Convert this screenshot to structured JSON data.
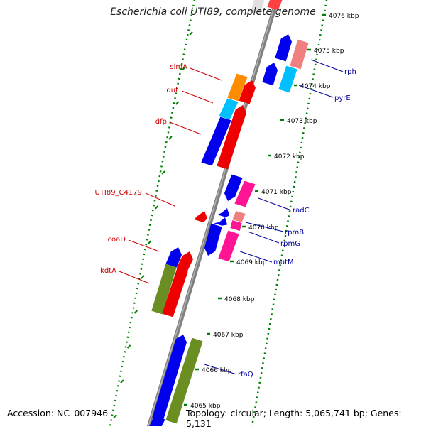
{
  "title": "Escherichia coli UTI89, complete genome",
  "accession_text": "Accession: NC_007946",
  "topology_text": "Topology: circular; Length: 5,065,741 bp; Genes: 5,131",
  "ticks": [
    "4076 kbp",
    "4075 kbp",
    "4074 kbp",
    "4073 kbp",
    "4072 kbp",
    "4071 kbp",
    "4070 kbp",
    "4069 kbp",
    "4068 kbp",
    "4067 kbp",
    "4066 kbp",
    "4065 kbp"
  ],
  "left_labels": [
    "slmA",
    "dut",
    "dfp",
    "UTI89_C4179",
    "coaD",
    "kdtA"
  ],
  "right_labels": [
    "rph",
    "pyrE",
    "radC",
    "rpmB",
    "rpmG",
    "mutM",
    "rfaQ"
  ],
  "colors": {
    "backbone": "#808080",
    "tick": "#008000",
    "left_label": "#cc0000",
    "right_label": "#00009c",
    "blue": "#0000ee",
    "red": "#ee0000",
    "orange": "#ff8c00",
    "cyan": "#00bfff",
    "pink": "#ff1493",
    "light_pink": "#f08080",
    "olive": "#6b8e23"
  }
}
